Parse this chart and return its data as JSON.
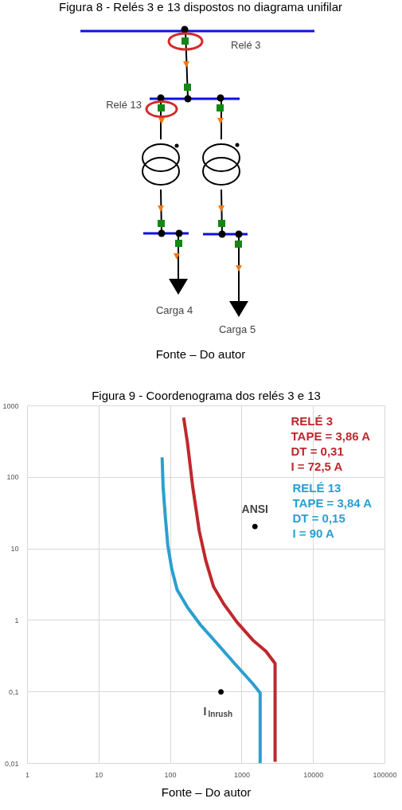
{
  "chart_data": [
    {
      "type": "other",
      "title": "Figura 8 - Relés 3 e 13 dispostos no diagrama unifilar",
      "annotations": [
        "Relé 3",
        "Relé 13",
        "Carga 4",
        "Carga 5",
        "Fonte – Do autor"
      ]
    },
    {
      "type": "line",
      "title": "Figura 9 - Coordenograma dos relés 3 e 13",
      "series": [
        {
          "name": "RELÉ 3\nTAPE = 3,86 A\nDT = 0,31\nI = 72,5 A",
          "color": "#c0282d",
          "x": [
            153,
            173,
            205,
            253,
            312,
            402,
            563,
            857,
            1422,
            2167,
            2911,
            2911
          ],
          "values": [
            684,
            306,
            73.8,
            17.8,
            6.9,
            2.94,
            1.67,
            0.94,
            0.53,
            0.37,
            0.25,
            0.0105
          ]
        },
        {
          "name": "RELÉ 13\nTAPE = 3,84 A\nDT = 0,15\nI = 90 A",
          "color": "#2a9fd0",
          "x": [
            76.5,
            79,
            84.7,
            92,
            104.5,
            124,
            173,
            264,
            437,
            789,
            1422,
            1800,
            1800
          ],
          "values": [
            190,
            73.8,
            28.6,
            11.1,
            5.2,
            2.68,
            1.52,
            0.86,
            0.49,
            0.25,
            0.13,
            0.097,
            0.01
          ]
        },
        {
          "type": "scatter",
          "color": "#000000",
          "x": [
            1521,
            509
          ],
          "values": [
            20.5,
            0.1
          ]
        }
      ],
      "annotations": [
        {
          "text": "ANSI",
          "x": 1521,
          "y": 20.5
        },
        {
          "text": "I$_{Inrush}$",
          "x": 509,
          "y": 0.1
        },
        "Fonte – Do autor"
      ],
      "log": "xy",
      "grid": true,
      "xlim": [
        1,
        100000
      ],
      "xticks": [
        1,
        10,
        100,
        1000,
        10000,
        100000
      ],
      "ylim": [
        0.01,
        1000
      ],
      "yticks": [
        {
          "value": 0.01,
          "label": "0,01"
        },
        {
          "value": 0.1,
          "label": "0,1"
        },
        1,
        10,
        100,
        1000
      ]
    }
  ]
}
